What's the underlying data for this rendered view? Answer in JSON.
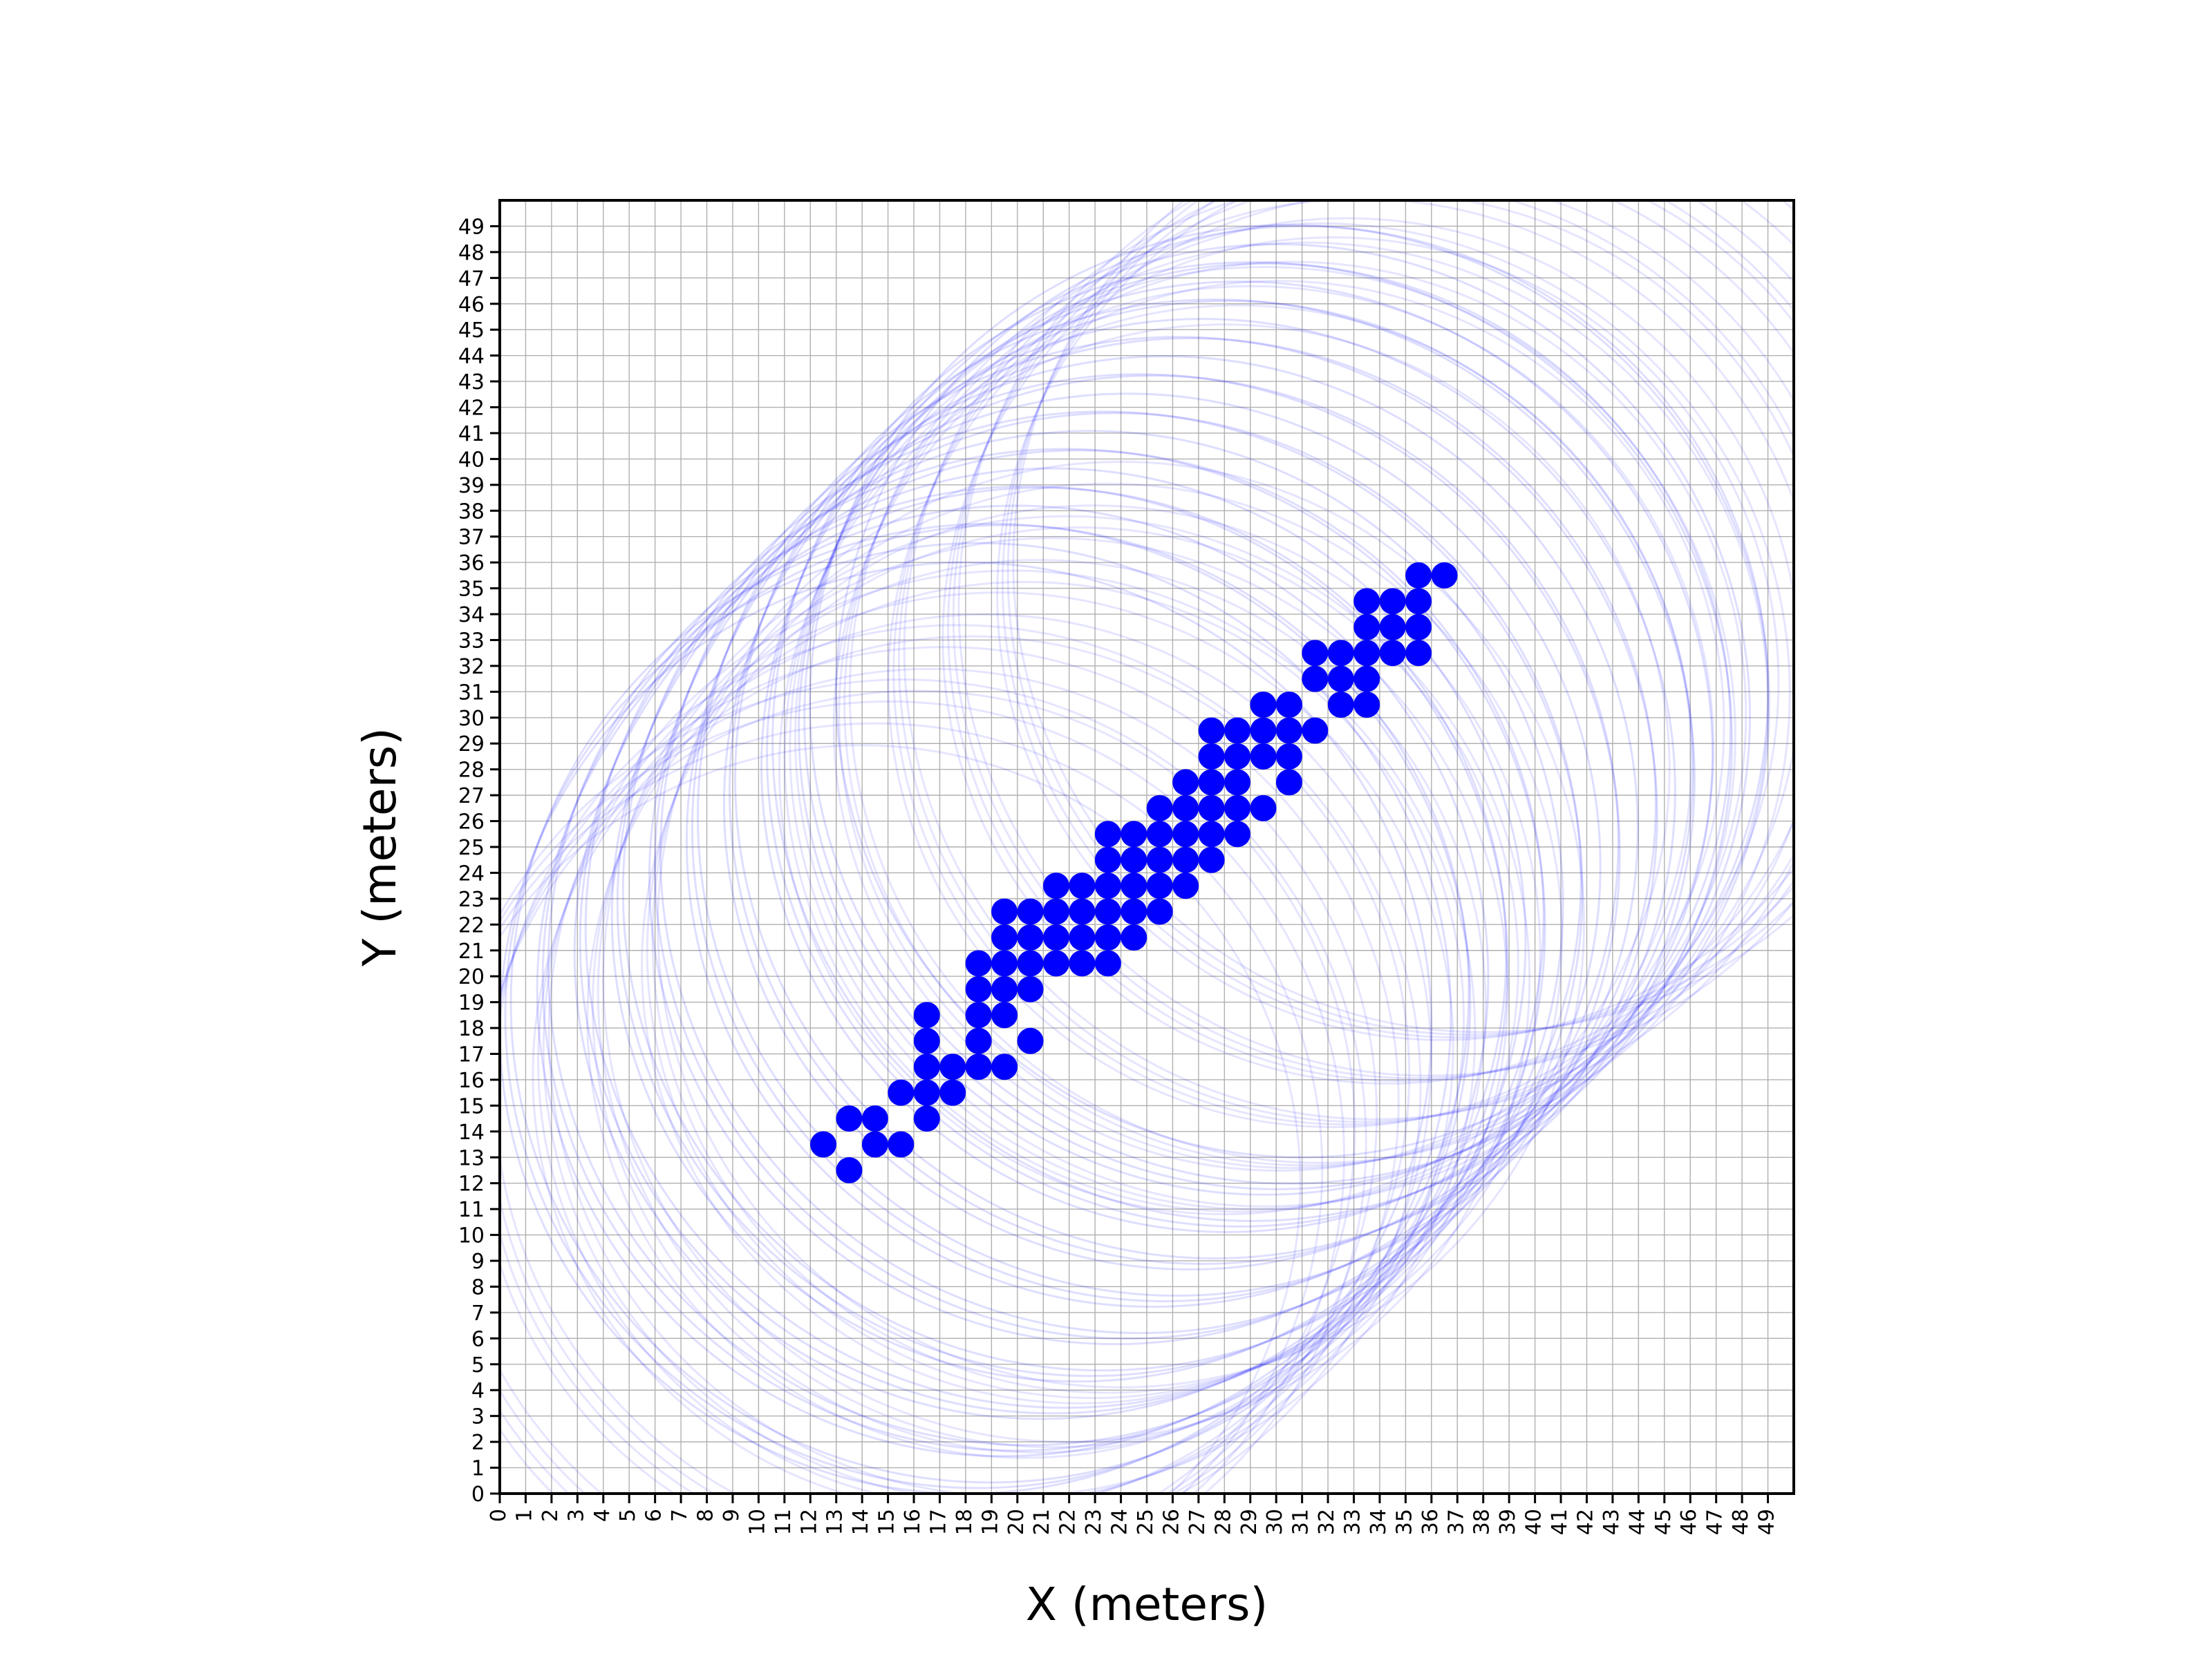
{
  "chart_data": {
    "type": "scatter",
    "title": "",
    "xlabel": "X (meters)",
    "ylabel": "Y (meters)",
    "xlim": [
      0,
      50
    ],
    "ylim": [
      0,
      50
    ],
    "xticks": [
      0,
      1,
      2,
      3,
      4,
      5,
      6,
      7,
      8,
      9,
      10,
      11,
      12,
      13,
      14,
      15,
      16,
      17,
      18,
      19,
      20,
      21,
      22,
      23,
      24,
      25,
      26,
      27,
      28,
      29,
      30,
      31,
      32,
      33,
      34,
      35,
      36,
      37,
      38,
      39,
      40,
      41,
      42,
      43,
      44,
      45,
      46,
      47,
      48,
      49
    ],
    "yticks": [
      0,
      1,
      2,
      3,
      4,
      5,
      6,
      7,
      8,
      9,
      10,
      11,
      12,
      13,
      14,
      15,
      16,
      17,
      18,
      19,
      20,
      21,
      22,
      23,
      24,
      25,
      26,
      27,
      28,
      29,
      30,
      31,
      32,
      33,
      34,
      35,
      36,
      37,
      38,
      39,
      40,
      41,
      42,
      43,
      44,
      45,
      46,
      47,
      48,
      49
    ],
    "grid": true,
    "point_color": "#0000ff",
    "circle_color": "#0000ff",
    "points": [
      [
        12.5,
        13.5
      ],
      [
        13.5,
        14.5
      ],
      [
        13.5,
        12.5
      ],
      [
        14.5,
        14.5
      ],
      [
        14.5,
        13.5
      ],
      [
        15.5,
        15.5
      ],
      [
        15.5,
        13.5
      ],
      [
        16.5,
        16.5
      ],
      [
        16.5,
        15.5
      ],
      [
        16.5,
        14.5
      ],
      [
        16.5,
        17.5
      ],
      [
        16.5,
        18.5
      ],
      [
        17.5,
        16.5
      ],
      [
        17.5,
        15.5
      ],
      [
        18.5,
        17.5
      ],
      [
        18.5,
        18.5
      ],
      [
        18.5,
        19.5
      ],
      [
        18.5,
        20.5
      ],
      [
        18.5,
        16.5
      ],
      [
        19.5,
        19.5
      ],
      [
        19.5,
        18.5
      ],
      [
        19.5,
        20.5
      ],
      [
        19.5,
        21.5
      ],
      [
        19.5,
        22.5
      ],
      [
        19.5,
        16.5
      ],
      [
        20.5,
        19.5
      ],
      [
        20.5,
        20.5
      ],
      [
        20.5,
        21.5
      ],
      [
        20.5,
        22.5
      ],
      [
        20.5,
        17.5
      ],
      [
        21.5,
        21.5
      ],
      [
        21.5,
        22.5
      ],
      [
        21.5,
        23.5
      ],
      [
        21.5,
        20.5
      ],
      [
        22.5,
        21.5
      ],
      [
        22.5,
        22.5
      ],
      [
        22.5,
        23.5
      ],
      [
        22.5,
        20.5
      ],
      [
        23.5,
        21.5
      ],
      [
        23.5,
        22.5
      ],
      [
        23.5,
        23.5
      ],
      [
        23.5,
        24.5
      ],
      [
        23.5,
        25.5
      ],
      [
        23.5,
        20.5
      ],
      [
        24.5,
        22.5
      ],
      [
        24.5,
        23.5
      ],
      [
        24.5,
        24.5
      ],
      [
        24.5,
        25.5
      ],
      [
        24.5,
        21.5
      ],
      [
        25.5,
        23.5
      ],
      [
        25.5,
        24.5
      ],
      [
        25.5,
        25.5
      ],
      [
        25.5,
        26.5
      ],
      [
        25.5,
        22.5
      ],
      [
        26.5,
        24.5
      ],
      [
        26.5,
        25.5
      ],
      [
        26.5,
        26.5
      ],
      [
        26.5,
        27.5
      ],
      [
        26.5,
        23.5
      ],
      [
        27.5,
        25.5
      ],
      [
        27.5,
        26.5
      ],
      [
        27.5,
        27.5
      ],
      [
        27.5,
        28.5
      ],
      [
        27.5,
        29.5
      ],
      [
        27.5,
        24.5
      ],
      [
        28.5,
        25.5
      ],
      [
        28.5,
        26.5
      ],
      [
        28.5,
        27.5
      ],
      [
        28.5,
        28.5
      ],
      [
        28.5,
        29.5
      ],
      [
        29.5,
        28.5
      ],
      [
        29.5,
        29.5
      ],
      [
        29.5,
        30.5
      ],
      [
        29.5,
        26.5
      ],
      [
        30.5,
        28.5
      ],
      [
        30.5,
        29.5
      ],
      [
        30.5,
        30.5
      ],
      [
        30.5,
        27.5
      ],
      [
        31.5,
        29.5
      ],
      [
        31.5,
        31.5
      ],
      [
        31.5,
        32.5
      ],
      [
        32.5,
        30.5
      ],
      [
        32.5,
        31.5
      ],
      [
        32.5,
        32.5
      ],
      [
        33.5,
        30.5
      ],
      [
        33.5,
        31.5
      ],
      [
        33.5,
        32.5
      ],
      [
        33.5,
        33.5
      ],
      [
        33.5,
        34.5
      ],
      [
        34.5,
        32.5
      ],
      [
        34.5,
        33.5
      ],
      [
        34.5,
        34.5
      ],
      [
        35.5,
        32.5
      ],
      [
        35.5,
        33.5
      ],
      [
        35.5,
        34.5
      ],
      [
        35.5,
        35.5
      ],
      [
        36.5,
        35.5
      ]
    ]
  }
}
